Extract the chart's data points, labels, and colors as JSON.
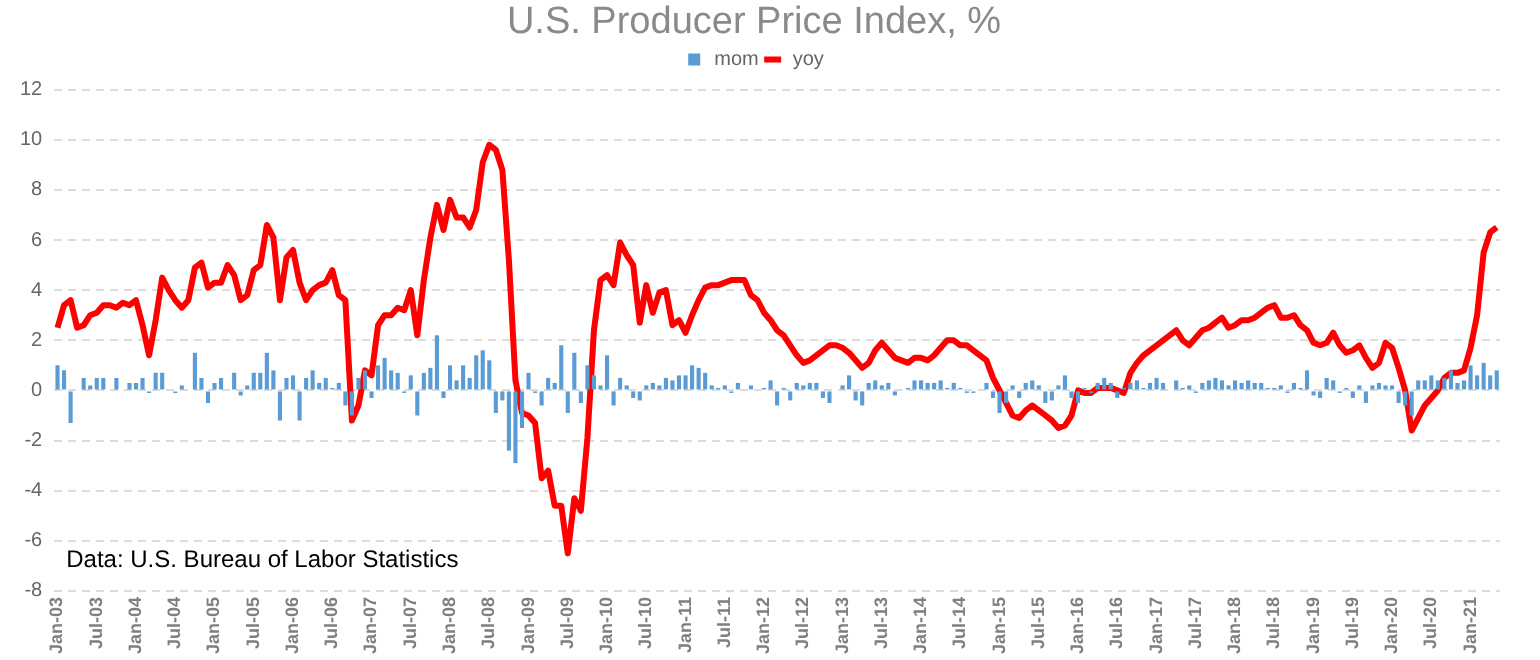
{
  "chart_data": {
    "type": "bar",
    "title": "U.S. Producer Price Index, %",
    "annotations": [
      "Data: U.S. Bureau of Labor Statistics"
    ],
    "categories": [
      "Jan-03",
      null,
      null,
      null,
      null,
      null,
      "Jul-03",
      null,
      null,
      null,
      null,
      null,
      "Jan-04",
      null,
      null,
      null,
      null,
      null,
      "Jul-04",
      null,
      null,
      null,
      null,
      null,
      "Jan-05",
      null,
      null,
      null,
      null,
      null,
      "Jul-05",
      null,
      null,
      null,
      null,
      null,
      "Jan-06",
      null,
      null,
      null,
      null,
      null,
      "Jul-06",
      null,
      null,
      null,
      null,
      null,
      "Jan-07",
      null,
      null,
      null,
      null,
      null,
      "Jul-07",
      null,
      null,
      null,
      null,
      null,
      "Jan-08",
      null,
      null,
      null,
      null,
      null,
      "Jul-08",
      null,
      null,
      null,
      null,
      null,
      "Jan-09",
      null,
      null,
      null,
      null,
      null,
      "Jul-09",
      null,
      null,
      null,
      null,
      null,
      "Jan-10",
      null,
      null,
      null,
      null,
      null,
      "Jul-10",
      null,
      null,
      null,
      null,
      null,
      "Jan-11",
      null,
      null,
      null,
      null,
      null,
      "Jul-11",
      null,
      null,
      null,
      null,
      null,
      "Jan-12",
      null,
      null,
      null,
      null,
      null,
      "Jul-12",
      null,
      null,
      null,
      null,
      null,
      "Jan-13",
      null,
      null,
      null,
      null,
      null,
      "Jul-13",
      null,
      null,
      null,
      null,
      null,
      "Jan-14",
      null,
      null,
      null,
      null,
      null,
      "Jul-14",
      null,
      null,
      null,
      null,
      null,
      "Jan-15",
      null,
      null,
      null,
      null,
      null,
      "Jul-15",
      null,
      null,
      null,
      null,
      null,
      "Jan-16",
      null,
      null,
      null,
      null,
      null,
      "Jul-16",
      null,
      null,
      null,
      null,
      null,
      "Jan-17",
      null,
      null,
      null,
      null,
      null,
      "Jul-17",
      null,
      null,
      null,
      null,
      null,
      "Jan-18",
      null,
      null,
      null,
      null,
      null,
      "Jul-18",
      null,
      null,
      null,
      null,
      null,
      "Jan-19",
      null,
      null,
      null,
      null,
      null,
      "Jul-19",
      null,
      null,
      null,
      null,
      null,
      "Jan-20",
      null,
      null,
      null,
      null,
      null,
      "Jul-20",
      null,
      null,
      null,
      null,
      null,
      "Jan-21",
      null,
      null,
      null,
      null
    ],
    "series": [
      {
        "name": "mom",
        "type": "bar",
        "color": "#5b9bd5",
        "values": [
          1.0,
          0.8,
          -1.3,
          0.0,
          0.5,
          0.2,
          0.5,
          0.5,
          0.0,
          0.5,
          0.0,
          0.3,
          0.3,
          0.5,
          -0.1,
          0.7,
          0.7,
          0.0,
          -0.1,
          0.2,
          0.0,
          1.5,
          0.5,
          -0.5,
          0.3,
          0.5,
          0.0,
          0.7,
          -0.2,
          0.2,
          0.7,
          0.7,
          1.5,
          0.8,
          -1.2,
          0.5,
          0.6,
          -1.2,
          0.5,
          0.8,
          0.3,
          0.5,
          0.1,
          0.3,
          -0.6,
          -1.0,
          0.5,
          0.8,
          -0.3,
          1.0,
          1.3,
          0.8,
          0.7,
          -0.1,
          0.6,
          -1.0,
          0.7,
          0.9,
          2.2,
          -0.3,
          1.0,
          0.4,
          1.0,
          0.5,
          1.4,
          1.6,
          1.2,
          -0.9,
          -0.4,
          -2.4,
          -2.9,
          -1.5,
          0.7,
          -0.1,
          -0.6,
          0.5,
          0.3,
          1.8,
          -0.9,
          1.5,
          -0.5,
          1.0,
          0.6,
          0.2,
          1.4,
          -0.6,
          0.5,
          0.2,
          -0.3,
          -0.4,
          0.2,
          0.3,
          0.2,
          0.5,
          0.4,
          0.6,
          0.6,
          1.0,
          0.9,
          0.7,
          0.2,
          0.1,
          0.2,
          -0.1,
          0.3,
          0.0,
          0.2,
          0.0,
          0.1,
          0.4,
          -0.6,
          0.1,
          -0.4,
          0.3,
          0.2,
          0.3,
          0.3,
          -0.3,
          -0.5,
          0.0,
          0.2,
          0.6,
          -0.4,
          -0.6,
          0.3,
          0.4,
          0.2,
          0.3,
          -0.2,
          0.0,
          0.1,
          0.4,
          0.4,
          0.3,
          0.3,
          0.4,
          0.1,
          0.3,
          0.1,
          -0.1,
          -0.1,
          0.0,
          0.3,
          -0.3,
          -0.9,
          -0.5,
          0.2,
          -0.3,
          0.3,
          0.4,
          0.2,
          -0.5,
          -0.4,
          0.2,
          0.6,
          -0.3,
          -0.5,
          0.1,
          -0.1,
          0.3,
          0.5,
          0.3,
          -0.3,
          0.1,
          0.3,
          0.4,
          0.1,
          0.3,
          0.5,
          0.3,
          0.0,
          0.4,
          0.1,
          0.2,
          -0.1,
          0.3,
          0.4,
          0.5,
          0.4,
          0.2,
          0.4,
          0.3,
          0.4,
          0.3,
          0.3,
          0.1,
          0.1,
          0.2,
          -0.1,
          0.3,
          0.1,
          0.8,
          -0.2,
          -0.3,
          0.5,
          0.4,
          -0.1,
          0.1,
          -0.3,
          0.2,
          -0.5,
          0.2,
          0.3,
          0.2,
          0.2,
          -0.5,
          -0.6,
          -1.0,
          0.4,
          0.4,
          0.6,
          0.4,
          0.5,
          0.8,
          0.3,
          0.4,
          1.0,
          0.6,
          1.1,
          0.6,
          0.8
        ]
      },
      {
        "name": "yoy",
        "type": "line",
        "color": "#ff0000",
        "values": [
          2.5,
          3.4,
          3.6,
          2.5,
          2.6,
          3.0,
          3.1,
          3.4,
          3.4,
          3.3,
          3.5,
          3.4,
          3.6,
          2.6,
          1.4,
          2.8,
          4.5,
          4.0,
          3.6,
          3.3,
          3.6,
          4.9,
          5.1,
          4.1,
          4.3,
          4.3,
          5.0,
          4.6,
          3.6,
          3.8,
          4.8,
          5.0,
          6.6,
          6.1,
          3.6,
          5.3,
          5.6,
          4.3,
          3.6,
          4.0,
          4.2,
          4.3,
          4.8,
          3.8,
          3.6,
          -1.2,
          -0.6,
          0.8,
          0.6,
          2.6,
          3.0,
          3.0,
          3.3,
          3.2,
          4.0,
          2.2,
          4.4,
          6.1,
          7.4,
          6.4,
          7.6,
          6.9,
          6.9,
          6.5,
          7.2,
          9.1,
          9.8,
          9.6,
          8.8,
          5.2,
          0.4,
          -0.9,
          -1.0,
          -1.3,
          -3.5,
          -3.2,
          -4.6,
          -4.6,
          -6.5,
          -4.3,
          -4.8,
          -1.9,
          2.4,
          4.4,
          4.6,
          4.2,
          5.9,
          5.4,
          5.0,
          2.7,
          4.2,
          3.1,
          3.9,
          4.0,
          2.6,
          2.8,
          2.3,
          3.0,
          3.6,
          4.1,
          4.2,
          4.2,
          4.3,
          4.4,
          4.4,
          4.4,
          3.8,
          3.6,
          3.1,
          2.8,
          2.4,
          2.2,
          1.8,
          1.4,
          1.1,
          1.2,
          1.4,
          1.6,
          1.8,
          1.8,
          1.7,
          1.5,
          1.2,
          0.9,
          1.1,
          1.6,
          1.9,
          1.6,
          1.3,
          1.2,
          1.1,
          1.3,
          1.3,
          1.2,
          1.4,
          1.7,
          2.0,
          2.0,
          1.8,
          1.8,
          1.6,
          1.4,
          1.2,
          0.5,
          0.0,
          -0.5,
          -1.0,
          -1.1,
          -0.8,
          -0.6,
          -0.8,
          -1.0,
          -1.2,
          -1.5,
          -1.4,
          -1.0,
          0.0,
          -0.1,
          -0.1,
          0.1,
          0.1,
          0.1,
          0.0,
          -0.1,
          0.7,
          1.1,
          1.4,
          1.6,
          1.8,
          2.0,
          2.2,
          2.4,
          2.0,
          1.8,
          2.1,
          2.4,
          2.5,
          2.7,
          2.9,
          2.5,
          2.6,
          2.8,
          2.8,
          2.9,
          3.1,
          3.3,
          3.4,
          2.9,
          2.9,
          3.0,
          2.6,
          2.4,
          1.9,
          1.8,
          1.9,
          2.3,
          1.8,
          1.5,
          1.6,
          1.8,
          1.3,
          0.9,
          1.1,
          1.9,
          1.7,
          0.9,
          0.0,
          -1.6,
          -1.1,
          -0.6,
          -0.3,
          0.0,
          0.5,
          0.7,
          0.7,
          0.8,
          1.7,
          3.0,
          5.5,
          6.3,
          6.5
        ]
      }
    ],
    "ylim": [
      -8,
      12
    ],
    "yticks": [
      -8,
      -6,
      -4,
      -2,
      0,
      2,
      4,
      6,
      8,
      10,
      12
    ],
    "grid": "y",
    "legend": "top"
  }
}
